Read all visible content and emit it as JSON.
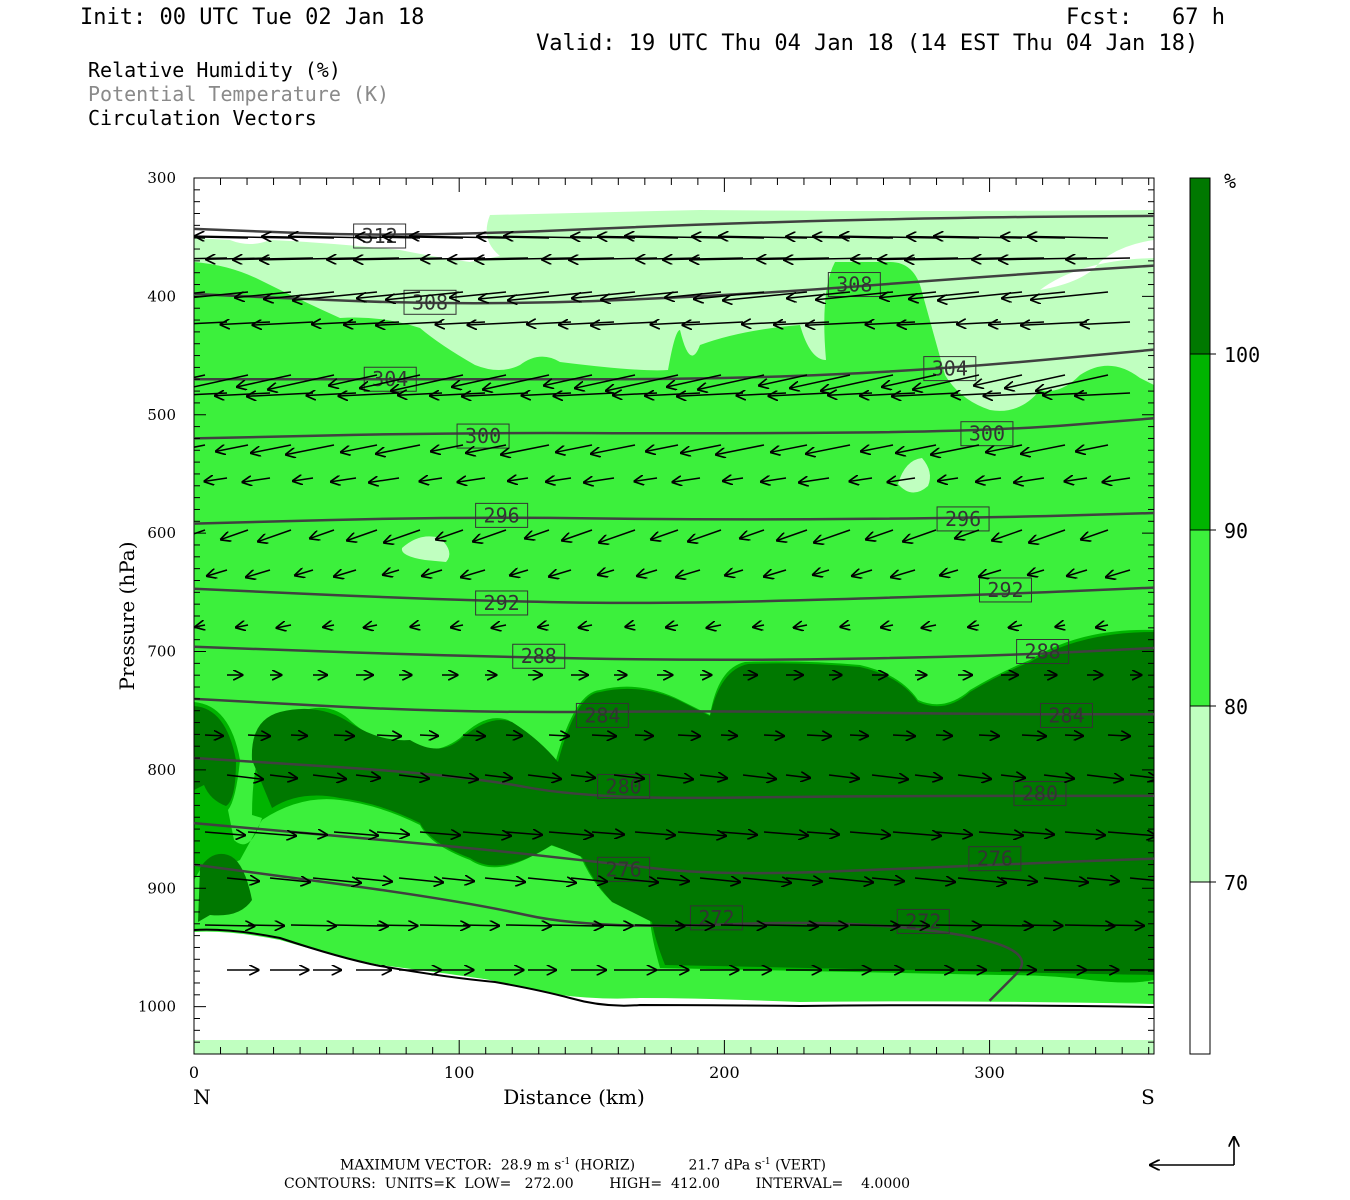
{
  "header": {
    "init": "Init: 00 UTC Tue 02 Jan 18",
    "fcst": "Fcst:   67 h",
    "valid": "Valid: 19 UTC Thu 04 Jan 18 (14 EST Thu 04 Jan 18)"
  },
  "legend_lines": {
    "rh": "Relative Humidity (%)",
    "theta": "Potential Temperature (K)",
    "vectors": "Circulation Vectors"
  },
  "colors": {
    "rh_70_80": "#c0ffc0",
    "rh_80_90": "#3cf03c",
    "rh_90_100": "#00b400",
    "rh_100_plus": "#007800",
    "contour": "#404040",
    "terrain": "#000000"
  },
  "chart_data": {
    "type": "contour",
    "xlabel": "Distance (km)",
    "ylabel": "Pressure (hPa)",
    "xlim": [
      0,
      362
    ],
    "ylim": [
      1040,
      300
    ],
    "xticks": [
      0,
      100,
      200,
      300
    ],
    "yticks": [
      300,
      400,
      500,
      600,
      700,
      800,
      900,
      1000
    ],
    "x_end_labels": {
      "left": "N",
      "right": "S"
    },
    "colorbar": {
      "unit": "%",
      "levels": [
        70,
        80,
        90,
        100
      ],
      "labels": [
        "70",
        "80",
        "90",
        "100"
      ]
    },
    "theta_contours": [
      {
        "label": "312",
        "values": [
          [
            0,
            343
          ],
          [
            80,
            350
          ],
          [
            200,
            338
          ],
          [
            300,
            333
          ],
          [
            362,
            332
          ]
        ],
        "labels_at": [
          [
            70,
            349
          ]
        ]
      },
      {
        "label": "308",
        "values": [
          [
            0,
            398
          ],
          [
            100,
            408
          ],
          [
            200,
            400
          ],
          [
            300,
            383
          ],
          [
            362,
            374
          ]
        ],
        "labels_at": [
          [
            89,
            405
          ],
          [
            249,
            390
          ]
        ]
      },
      {
        "label": "304",
        "values": [
          [
            0,
            470
          ],
          [
            100,
            470
          ],
          [
            200,
            470
          ],
          [
            280,
            462
          ],
          [
            362,
            445
          ]
        ],
        "labels_at": [
          [
            74,
            470
          ],
          [
            285,
            461
          ]
        ]
      },
      {
        "label": "300",
        "values": [
          [
            0,
            520
          ],
          [
            100,
            515
          ],
          [
            200,
            516
          ],
          [
            300,
            514
          ],
          [
            362,
            503
          ]
        ],
        "labels_at": [
          [
            109,
            518
          ],
          [
            299,
            516
          ]
        ]
      },
      {
        "label": "296",
        "values": [
          [
            0,
            592
          ],
          [
            100,
            586
          ],
          [
            200,
            589
          ],
          [
            300,
            587
          ],
          [
            362,
            583
          ]
        ],
        "labels_at": [
          [
            116,
            585
          ],
          [
            290,
            588
          ]
        ]
      },
      {
        "label": "292",
        "values": [
          [
            0,
            647
          ],
          [
            100,
            657
          ],
          [
            180,
            660
          ],
          [
            300,
            652
          ],
          [
            362,
            646
          ]
        ],
        "labels_at": [
          [
            116,
            659
          ],
          [
            306,
            648
          ]
        ]
      },
      {
        "label": "288",
        "values": [
          [
            0,
            696
          ],
          [
            100,
            704
          ],
          [
            200,
            708
          ],
          [
            300,
            704
          ],
          [
            362,
            697
          ]
        ],
        "labels_at": [
          [
            130,
            704
          ],
          [
            320,
            700
          ]
        ]
      },
      {
        "label": "284",
        "values": [
          [
            0,
            740
          ],
          [
            100,
            752
          ],
          [
            200,
            750
          ],
          [
            300,
            753
          ],
          [
            362,
            753
          ]
        ],
        "labels_at": [
          [
            154,
            754
          ],
          [
            329,
            754
          ]
        ]
      },
      {
        "label": "280",
        "values": [
          [
            0,
            790
          ],
          [
            100,
            804
          ],
          [
            150,
            825
          ],
          [
            250,
            822
          ],
          [
            362,
            822
          ]
        ],
        "labels_at": [
          [
            162,
            814
          ],
          [
            319,
            820
          ]
        ]
      },
      {
        "label": "276",
        "values": [
          [
            0,
            845
          ],
          [
            100,
            865
          ],
          [
            150,
            877
          ],
          [
            200,
            890
          ],
          [
            300,
            880
          ],
          [
            362,
            875
          ]
        ],
        "labels_at": [
          [
            162,
            884
          ],
          [
            302,
            875
          ]
        ]
      },
      {
        "label": "272",
        "values": [
          [
            0,
            880
          ],
          [
            100,
            910
          ],
          [
            150,
            935
          ],
          [
            250,
            926
          ],
          [
            320,
            950
          ],
          [
            300,
            995
          ]
        ],
        "labels_at": [
          [
            197,
            925
          ],
          [
            275,
            928
          ]
        ]
      }
    ],
    "footer": {
      "max_vector_label": "MAXIMUM VECTOR:",
      "horiz_value": "28.9",
      "horiz_unit_base": "m s",
      "horiz_exp": "-1",
      "horiz_tag": "(HORIZ)",
      "vert_value": "21.7",
      "vert_unit_base": "dPa s",
      "vert_exp": "-1",
      "vert_tag": "(VERT)",
      "contours_line": "CONTOURS:  UNITS=K  LOW=   272.00        HIGH=  412.00        INTERVAL=    4.0000"
    }
  }
}
